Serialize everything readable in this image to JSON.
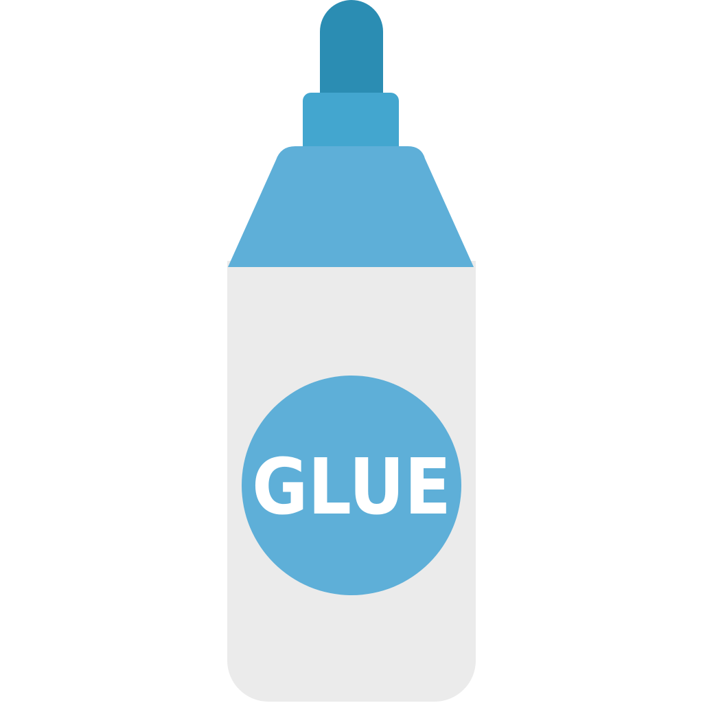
{
  "icon": {
    "name": "glue-bottle-icon",
    "label": "GLUE"
  },
  "colors": {
    "background": "#ffffff",
    "nozzle_tip": "#2b8db3",
    "nozzle_collar": "#43a6cf",
    "shoulder": "#5eafd8",
    "body": "#ebebeb",
    "label_circle": "#5eafd8",
    "label_text": "#ffffff"
  }
}
